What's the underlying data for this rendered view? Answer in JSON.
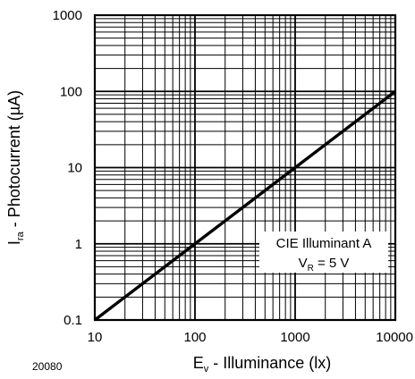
{
  "chart_data": {
    "type": "line",
    "x_scale": "log",
    "y_scale": "log",
    "xlim": [
      10,
      10000
    ],
    "ylim": [
      0.1,
      1000
    ],
    "grid": true,
    "x_ticks": [
      "10",
      "100",
      "1000",
      "10000"
    ],
    "y_ticks": [
      "0.1",
      "1",
      "10",
      "100",
      "1000"
    ],
    "xlabel": {
      "main": "E",
      "sub": "v",
      "rest": " - Illuminance (lx)"
    },
    "ylabel": {
      "main": "I",
      "sub": "ra",
      "rest": " - Photocurrent (µA)"
    },
    "figure_id": "20080",
    "annotation": {
      "line1": "CIE Illuminant A",
      "line2_main": "V",
      "line2_sub": "R",
      "line2_rest": " = 5 V"
    },
    "series": [
      {
        "x": [
          10,
          100,
          1000,
          10000
        ],
        "y": [
          0.1,
          1,
          10,
          100
        ]
      }
    ]
  }
}
